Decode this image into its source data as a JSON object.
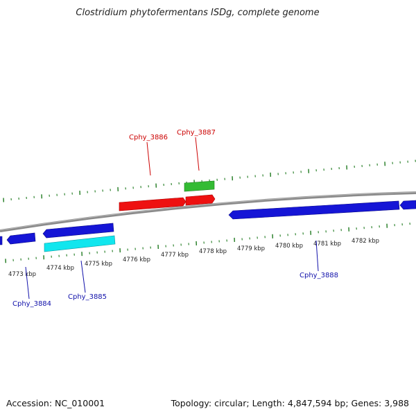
{
  "title": "Clostridium phytofermentans ISDg, complete genome",
  "footer": {
    "accession": "Accession: NC_010001",
    "summary": "Topology: circular; Length: 4,847,594 bp; Genes: 3,988"
  },
  "colors": {
    "forward_gene": "#ee1111",
    "reverse_gene": "#1515d6",
    "rna_gene_top": "#33bb33",
    "rna_gene_bottom": "#11e6ee",
    "backbone": "#888888",
    "tick": "#1f7a1f",
    "forward_label": "#cc0000",
    "reverse_label": "#1010aa"
  },
  "scale_labels": [
    "4773 kbp",
    "4774 kbp",
    "4775 kbp",
    "4776 kbp",
    "4777 kbp",
    "4778 kbp",
    "4779 kbp",
    "4780 kbp",
    "4781 kbp",
    "4782 kbp"
  ],
  "gene_labels": {
    "cphy_3886": "Cphy_3886",
    "cphy_3887": "Cphy_3887",
    "cphy_3884": "Cphy_3884",
    "cphy_3885": "Cphy_3885",
    "cphy_3888": "Cphy_3888"
  }
}
